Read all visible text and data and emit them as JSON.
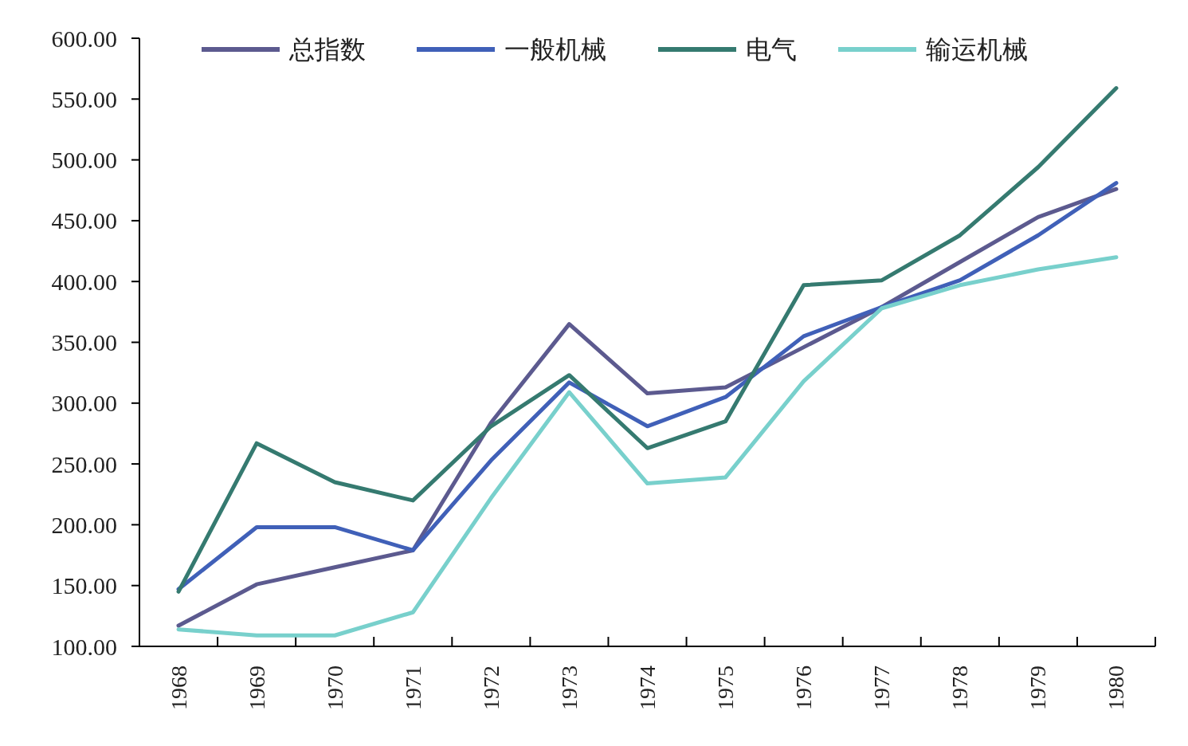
{
  "chart_data": {
    "type": "line",
    "categories": [
      "1968",
      "1969",
      "1970",
      "1971",
      "1972",
      "1973",
      "1974",
      "1975",
      "1976",
      "1977",
      "1978",
      "1979",
      "1980"
    ],
    "ylim": [
      100,
      600
    ],
    "yticks": [
      {
        "value": 100,
        "label": "100.00"
      },
      {
        "value": 150,
        "label": "150.00"
      },
      {
        "value": 200,
        "label": "200.00"
      },
      {
        "value": 250,
        "label": "250.00"
      },
      {
        "value": 300,
        "label": "300.00"
      },
      {
        "value": 350,
        "label": "350.00"
      },
      {
        "value": 400,
        "label": "400.00"
      },
      {
        "value": 450,
        "label": "450.00"
      },
      {
        "value": 500,
        "label": "500.00"
      },
      {
        "value": 550,
        "label": "550.00"
      },
      {
        "value": 600,
        "label": "600.00"
      }
    ],
    "grid": false,
    "legend": "top",
    "marker": "none",
    "line_style": "solid",
    "series": [
      {
        "name": "总指数",
        "color": "#5c5a8f",
        "values": [
          117,
          151,
          165,
          179,
          284,
          365,
          308,
          313,
          346,
          379,
          416,
          453,
          476
        ]
      },
      {
        "name": "一般机械",
        "color": "#4060b8",
        "values": [
          147,
          198,
          198,
          179,
          253,
          317,
          281,
          305,
          355,
          379,
          401,
          438,
          481
        ]
      },
      {
        "name": "电气",
        "color": "#357a70",
        "values": [
          145,
          267,
          235,
          220,
          281,
          323,
          263,
          285,
          397,
          401,
          438,
          494,
          559
        ]
      },
      {
        "name": "输运机械",
        "color": "#78d0cc",
        "values": [
          114,
          109,
          109,
          128,
          222,
          309,
          234,
          239,
          318,
          378,
          397,
          410,
          420
        ]
      }
    ]
  }
}
